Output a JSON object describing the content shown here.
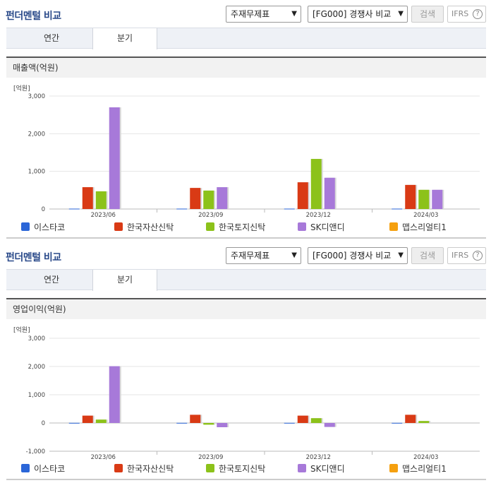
{
  "sections": [
    {
      "header": {
        "title": "펀더멘털 비교",
        "select_statement": "주재무제표",
        "select_peer": "[FG000] 경쟁사 비교",
        "search_label": "검색",
        "ifrs_label": "IFRS",
        "help": "?"
      },
      "tabs": [
        {
          "label": "연간"
        },
        {
          "label": "분기"
        }
      ],
      "metric_label": "매출액(억원)",
      "unit_label": "[억원]"
    },
    {
      "header": {
        "title": "펀더멘털 비교",
        "select_statement": "주재무제표",
        "select_peer": "[FG000] 경쟁사 비교",
        "search_label": "검색",
        "ifrs_label": "IFRS",
        "help": "?"
      },
      "tabs": [
        {
          "label": "연간"
        },
        {
          "label": "분기"
        }
      ],
      "metric_label": "영업이익(억원)",
      "unit_label": "[억원]"
    }
  ],
  "chart_data": [
    {
      "type": "bar",
      "title": "매출액(억원)",
      "ylabel": "[억원]",
      "categories": [
        "2023/06",
        "2023/09",
        "2023/12",
        "2024/03"
      ],
      "ylim": [
        0,
        3000
      ],
      "yticks": [
        "3,000",
        "2,000",
        "1,000",
        "0"
      ],
      "yticks_values": [
        3000,
        2000,
        1000,
        0
      ],
      "grid": true,
      "legend_position": "bottom",
      "series": [
        {
          "name": "이스타코",
          "color": "#2b66d8",
          "values": [
            10,
            10,
            10,
            10
          ]
        },
        {
          "name": "한국자산신탁",
          "color": "#d93a15",
          "values": [
            580,
            560,
            710,
            640
          ]
        },
        {
          "name": "한국토지신탁",
          "color": "#8cc21a",
          "values": [
            470,
            490,
            1330,
            510
          ]
        },
        {
          "name": "SK디앤디",
          "color": "#a779d9",
          "values": [
            2700,
            580,
            830,
            510
          ]
        },
        {
          "name": "맵스리얼티1",
          "color": "#f5a00f",
          "values": [
            0,
            0,
            0,
            0
          ]
        }
      ]
    },
    {
      "type": "bar",
      "title": "영업이익(억원)",
      "ylabel": "[억원]",
      "categories": [
        "2023/06",
        "2023/09",
        "2023/12",
        "2024/03"
      ],
      "ylim": [
        -1000,
        3000
      ],
      "yticks": [
        "3,000",
        "2,000",
        "1,000",
        "0",
        "-1,000"
      ],
      "yticks_values": [
        3000,
        2000,
        1000,
        0,
        -1000
      ],
      "grid": true,
      "legend_position": "bottom",
      "series": [
        {
          "name": "이스타코",
          "color": "#2b66d8",
          "values": [
            5,
            5,
            5,
            5
          ]
        },
        {
          "name": "한국자산신탁",
          "color": "#d93a15",
          "values": [
            260,
            290,
            260,
            290
          ]
        },
        {
          "name": "한국토지신탁",
          "color": "#8cc21a",
          "values": [
            120,
            -60,
            170,
            70
          ]
        },
        {
          "name": "SK디앤디",
          "color": "#a779d9",
          "values": [
            2010,
            -150,
            -140,
            0
          ]
        },
        {
          "name": "맵스리얼티1",
          "color": "#f5a00f",
          "values": [
            0,
            0,
            0,
            0
          ]
        }
      ]
    }
  ]
}
